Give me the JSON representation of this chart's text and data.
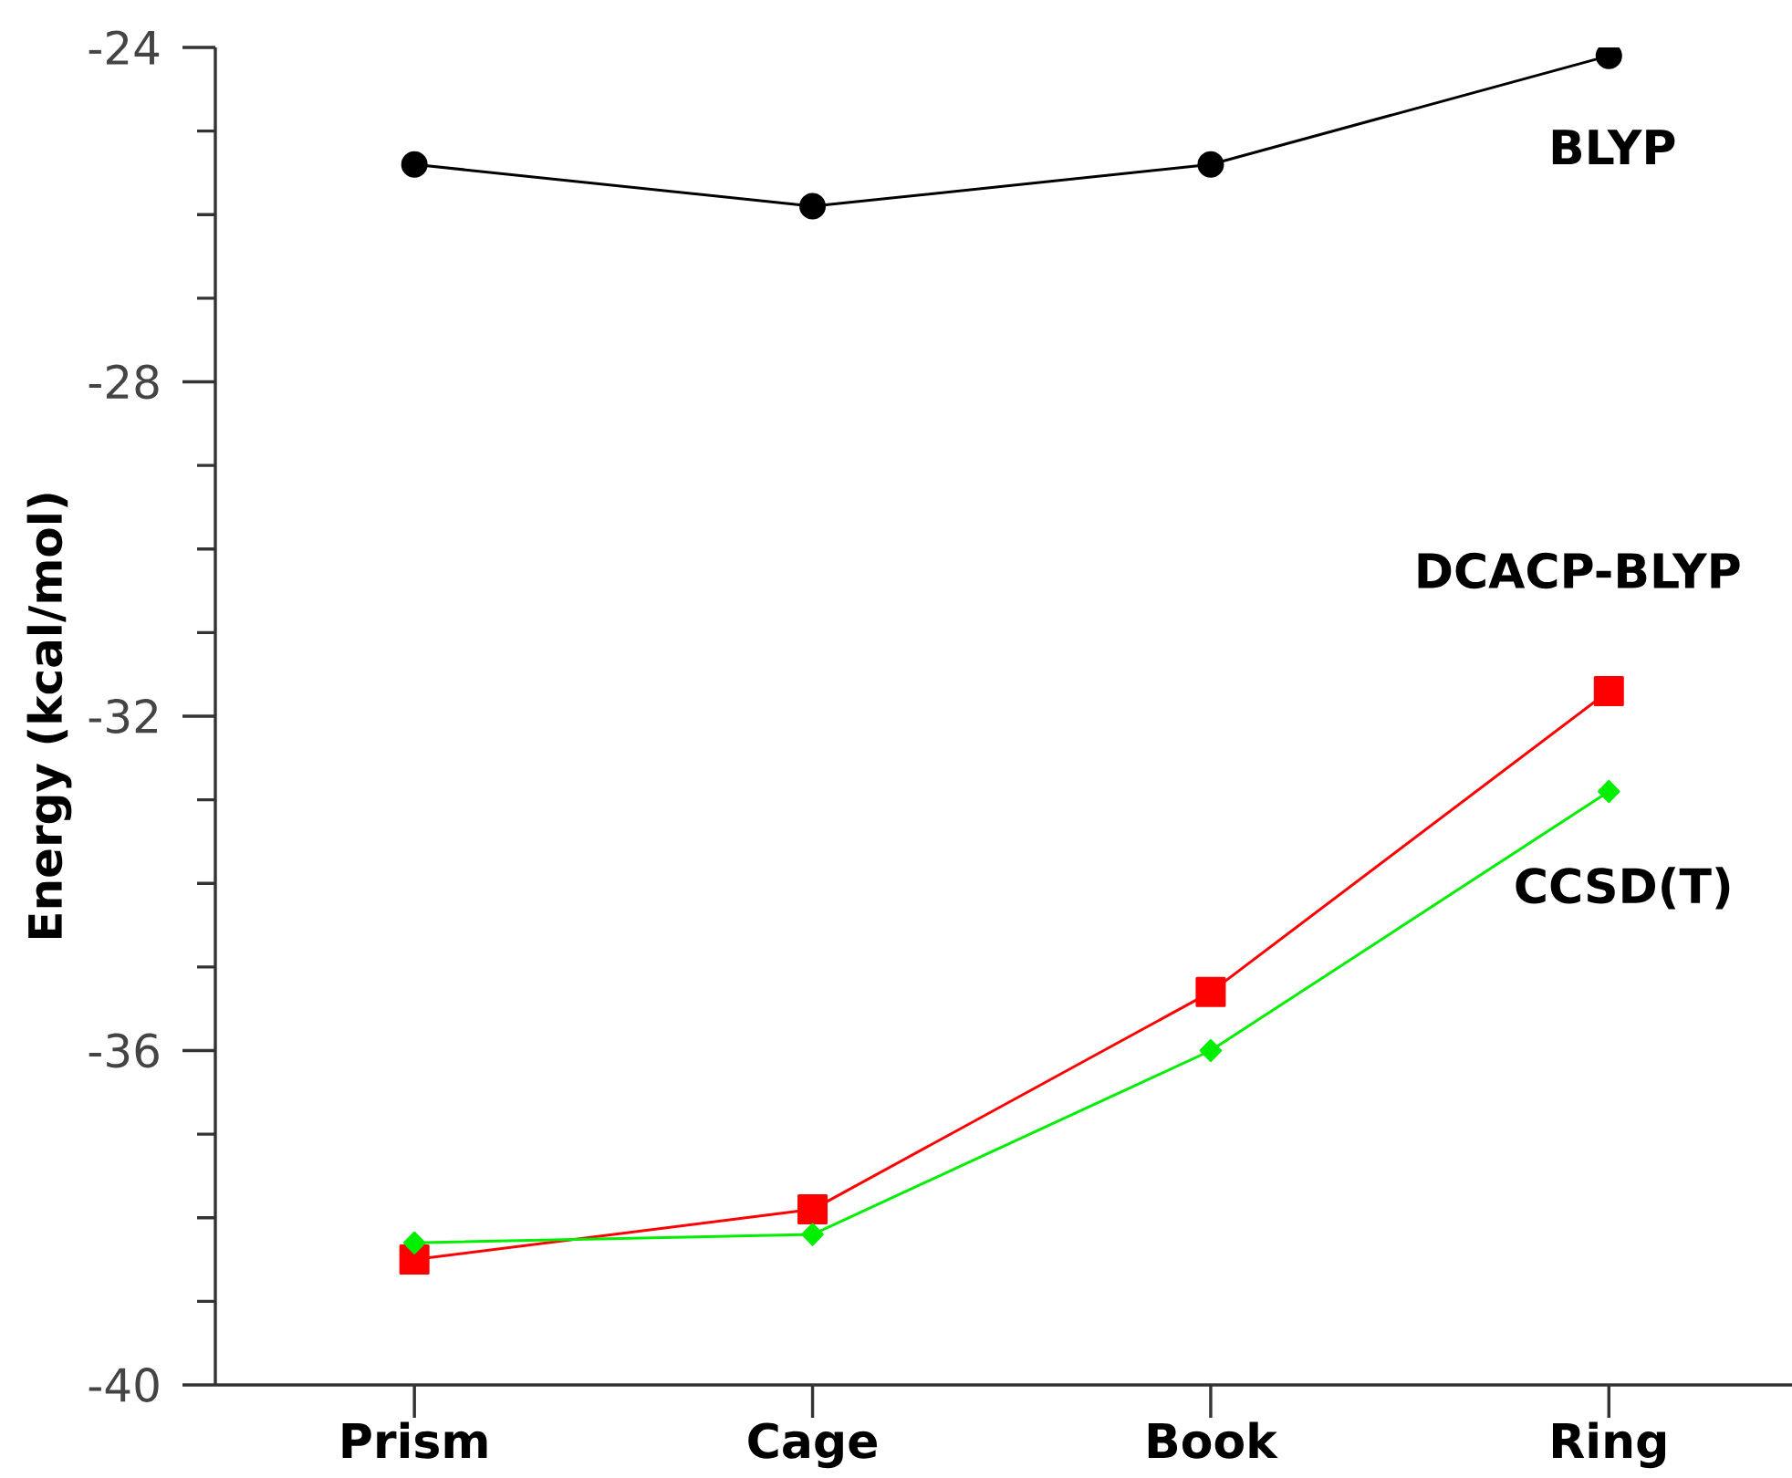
{
  "chart_data": {
    "type": "line",
    "ylabel": "Energy (kcal/mol)",
    "categories": [
      "Prism",
      "Cage",
      "Book",
      "Ring"
    ],
    "ylim": [
      -40,
      -24
    ],
    "yticks": [
      -40,
      -36,
      -32,
      -28,
      -24
    ],
    "series": [
      {
        "name": "BLYP",
        "color": "#000000",
        "marker": "circle",
        "line_style": "solid",
        "values": [
          -25.4,
          -25.9,
          -25.4,
          -24.1
        ]
      },
      {
        "name": "DCACP-BLYP",
        "color": "#ff0000",
        "marker": "square",
        "line_style": "solid",
        "values": [
          -38.5,
          -37.9,
          -35.3,
          -31.7
        ]
      },
      {
        "name": "CCSD(T)",
        "color": "#00ee00",
        "marker": "diamond",
        "line_style": "solid",
        "values": [
          -38.3,
          -38.2,
          -36.0,
          -32.9
        ]
      }
    ]
  }
}
